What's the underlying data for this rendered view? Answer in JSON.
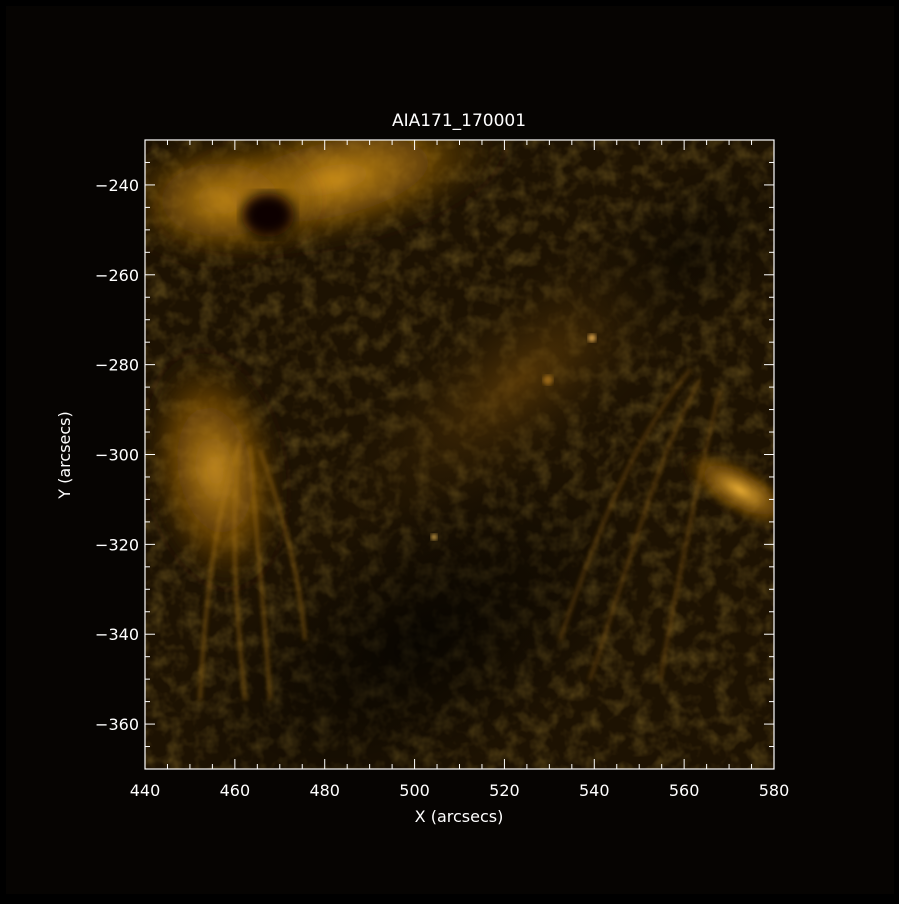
{
  "title": "AIA171_170001",
  "xlabel": "X (arcsecs)",
  "ylabel": "Y (arcsecs)",
  "colors": {
    "background": "#000000",
    "axes": "#ffffff",
    "colormap": "sdo-aia-171-gold"
  },
  "x_axis": {
    "range": [
      440,
      580
    ],
    "ticks": [
      "440",
      "460",
      "480",
      "500",
      "520",
      "540",
      "560",
      "580"
    ]
  },
  "y_axis": {
    "range": [
      -370,
      -230
    ],
    "ticks": [
      "-240",
      "-260",
      "-280",
      "-300",
      "-320",
      "-340",
      "-360"
    ]
  }
}
